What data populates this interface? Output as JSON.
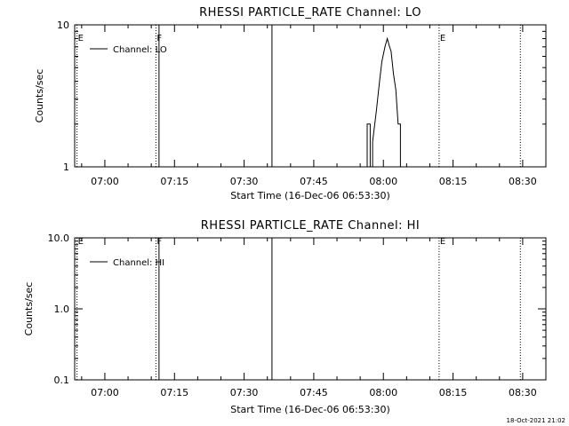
{
  "footer": {
    "timestamp": "18-Oct-2021 21:02"
  },
  "chart_data": [
    {
      "type": "line",
      "title": "RHESSI PARTICLE_RATE Channel: LO",
      "xlabel": "Start Time (16-Dec-06 06:53:30)",
      "ylabel": "Counts/sec",
      "yscale": "log",
      "ylim": [
        1,
        10
      ],
      "yticks": [
        1,
        10
      ],
      "ytick_labels": [
        "1",
        "10"
      ],
      "xlim": [
        "06:53:30",
        "08:35:00"
      ],
      "xtick_labels": [
        "07:00",
        "07:15",
        "07:30",
        "07:45",
        "08:00",
        "08:15",
        "08:30"
      ],
      "grid": false,
      "legend": {
        "position": "top-left",
        "label": "Channel: LO"
      },
      "markers": [
        {
          "label": "E",
          "time": "06:54:00",
          "style": "dotted"
        },
        {
          "label": "F",
          "time": "07:11:00",
          "style": "dotted"
        },
        {
          "label": "",
          "time": "07:11:40",
          "style": "solid"
        },
        {
          "label": "",
          "time": "07:36:00",
          "style": "solid"
        },
        {
          "label": "E",
          "time": "08:12:00",
          "style": "dotted"
        },
        {
          "label": "",
          "time": "08:29:30",
          "style": "dotted"
        }
      ],
      "series": [
        {
          "values": [
            [
              "07:56:30",
              1
            ],
            [
              "07:56:30",
              2.0
            ],
            [
              "07:57:10",
              2.0
            ],
            [
              "07:57:10",
              1
            ],
            [
              "07:57:40",
              1
            ],
            [
              "07:57:40",
              1.5
            ],
            [
              "07:58:30",
              2.5
            ],
            [
              "07:59:10",
              4.0
            ],
            [
              "07:59:40",
              5.5
            ],
            [
              "08:00:20",
              7.0
            ],
            [
              "08:00:50",
              8.0
            ],
            [
              "08:01:20",
              7.0
            ],
            [
              "08:01:40",
              6.5
            ],
            [
              "08:02:10",
              4.5
            ],
            [
              "08:02:40",
              3.5
            ],
            [
              "08:03:10",
              2.0
            ],
            [
              "08:03:40",
              2.0
            ],
            [
              "08:03:40",
              1
            ]
          ]
        }
      ]
    },
    {
      "type": "line",
      "title": "RHESSI PARTICLE_RATE Channel: HI",
      "xlabel": "Start Time (16-Dec-06 06:53:30)",
      "ylabel": "Counts/sec",
      "yscale": "log",
      "ylim": [
        0.1,
        10
      ],
      "yticks": [
        0.1,
        1,
        10
      ],
      "ytick_labels": [
        "0.1",
        "1.0",
        "10.0"
      ],
      "xlim": [
        "06:53:30",
        "08:35:00"
      ],
      "xtick_labels": [
        "07:00",
        "07:15",
        "07:30",
        "07:45",
        "08:00",
        "08:15",
        "08:30"
      ],
      "grid": false,
      "legend": {
        "position": "top-left",
        "label": "Channel: HI"
      },
      "markers": [
        {
          "label": "E",
          "time": "06:54:00",
          "style": "dotted"
        },
        {
          "label": "F",
          "time": "07:11:00",
          "style": "dotted"
        },
        {
          "label": "",
          "time": "07:11:40",
          "style": "solid"
        },
        {
          "label": "",
          "time": "07:36:00",
          "style": "solid"
        },
        {
          "label": "E",
          "time": "08:12:00",
          "style": "dotted"
        },
        {
          "label": "",
          "time": "08:29:30",
          "style": "dotted"
        }
      ],
      "series": [
        {
          "values": []
        }
      ]
    }
  ]
}
